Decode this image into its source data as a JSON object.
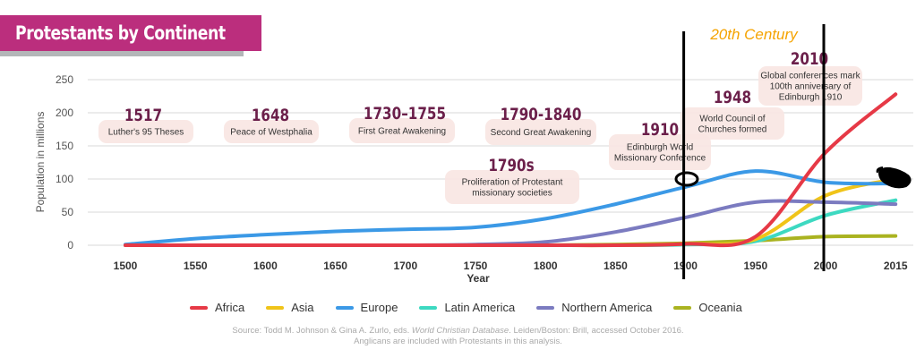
{
  "header": {
    "title": "Protestants by Continent",
    "icon": "people-group-icon",
    "bar_color": "#bb2e7d"
  },
  "chart_data": {
    "type": "line",
    "title": "Protestants by Continent",
    "xlabel": "Year",
    "ylabel": "Population in millions",
    "ylim": [
      0,
      250
    ],
    "yticks": [
      0,
      50,
      100,
      150,
      200,
      250
    ],
    "x": [
      1500,
      1550,
      1600,
      1650,
      1700,
      1750,
      1800,
      1850,
      1900,
      1950,
      2000,
      2015
    ],
    "xtick_labels": [
      "1500",
      "1550",
      "1600",
      "1650",
      "1700",
      "1750",
      "1800",
      "1850",
      "1900",
      "1950",
      "2000",
      "2015"
    ],
    "grid": true,
    "legend_position": "bottom",
    "series": [
      {
        "name": "Africa",
        "color": "#e63946",
        "values": [
          0,
          0,
          0,
          0,
          0,
          0,
          0,
          0,
          2,
          13,
          140,
          228
        ]
      },
      {
        "name": "Asia",
        "color": "#f0c419",
        "values": [
          0,
          0,
          0,
          0,
          0,
          0,
          0,
          0,
          2,
          9,
          75,
          100
        ]
      },
      {
        "name": "Europe",
        "color": "#3b99e6",
        "values": [
          1,
          10,
          16,
          21,
          24,
          27,
          40,
          62,
          88,
          112,
          95,
          93
        ]
      },
      {
        "name": "Latin America",
        "color": "#3dd9c1",
        "values": [
          0,
          0,
          0,
          0,
          0,
          0,
          0,
          0,
          1,
          6,
          45,
          68
        ]
      },
      {
        "name": "Northern America",
        "color": "#7b7bc0",
        "values": [
          0,
          0,
          0,
          0,
          0,
          1,
          5,
          20,
          42,
          65,
          65,
          62
        ]
      },
      {
        "name": "Oceania",
        "color": "#aab320",
        "values": [
          0,
          0,
          0,
          0,
          0,
          0,
          0,
          1,
          3,
          7,
          13,
          14
        ]
      }
    ],
    "annotations": [
      {
        "year": "1517",
        "text": [
          "Luther's 95 Theses"
        ]
      },
      {
        "year": "1648",
        "text": [
          "Peace of Westphalia"
        ]
      },
      {
        "year": "1730–1755",
        "text": [
          "First Great Awakening"
        ]
      },
      {
        "year": "1790-1840",
        "text": [
          "Second Great Awakening"
        ]
      },
      {
        "year": "1790s",
        "text": [
          "Proliferation of Protestant",
          "missionary societies"
        ]
      },
      {
        "year": "1910",
        "text": [
          "Edinburgh World",
          "Missionary Conference"
        ]
      },
      {
        "year": "1948",
        "text": [
          "World Council of",
          "Churches formed"
        ]
      },
      {
        "year": "2010",
        "text": [
          "Global conferences mark",
          "100th anniversary of",
          "Edinburgh 1910"
        ]
      }
    ],
    "overlay": {
      "label": "20th Century",
      "label_color": "#f5a300",
      "bounds": [
        1900,
        2000
      ]
    }
  },
  "source": {
    "line1_pre": "Source: Todd M. Johnson & Gina A. Zurlo, eds. ",
    "line1_italic": "World Christian Database",
    "line1_post": ". Leiden/Boston: Brill, accessed October 2016.",
    "line2": "Anglicans are included with Protestants in this analysis."
  }
}
